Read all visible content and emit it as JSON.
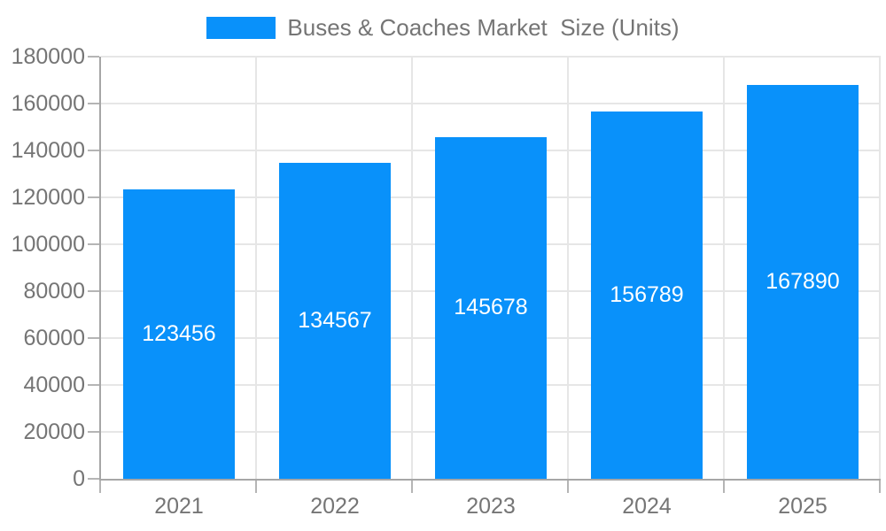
{
  "chart_data": {
    "type": "bar",
    "title": "Buses & Coaches Market  Size (Units)",
    "categories": [
      "2021",
      "2022",
      "2023",
      "2024",
      "2025"
    ],
    "values": [
      123456,
      134567,
      145678,
      156789,
      167890
    ],
    "bar_labels": [
      "123456",
      "134567",
      "145678",
      "156789",
      "167890"
    ],
    "xlabel": "",
    "ylabel": "",
    "ylim": [
      0,
      180000
    ],
    "ytick_step": 20000,
    "ytick_labels": [
      "0",
      "20000",
      "40000",
      "60000",
      "80000",
      "100000",
      "120000",
      "140000",
      "160000",
      "180000"
    ],
    "grid": true,
    "legend_position": "top-center",
    "colors": {
      "bar": "#0991fa",
      "axis_line": "#a6a6a6",
      "gridline": "#e6e6e6",
      "tick": "#b5b5b5",
      "axis_text": "#757575",
      "bar_label_text": "#ffffff",
      "background": "#ffffff"
    }
  }
}
